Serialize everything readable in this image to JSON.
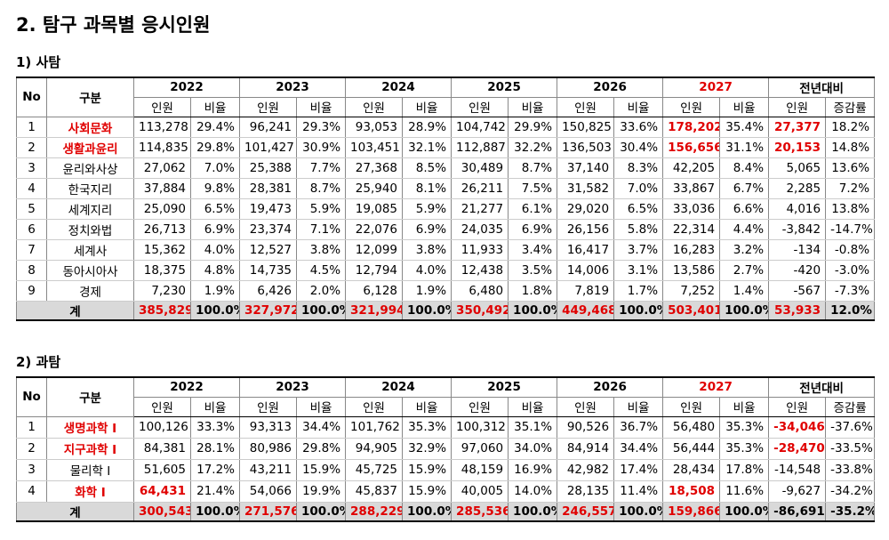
{
  "title": "2. 탐구 과목별 응시인원",
  "sections": [
    {
      "heading": "1) 사탐",
      "header": {
        "no": "No",
        "subject": "구분",
        "years": [
          "2022",
          "2023",
          "2024",
          "2025",
          "2026",
          "2027"
        ],
        "year_red": [
          5
        ],
        "change": "전년대비",
        "sub": [
          "인원",
          "비율",
          "인원",
          "비율",
          "인원",
          "비율",
          "인원",
          "비율",
          "인원",
          "비율",
          "인원",
          "비율",
          "인원",
          "증감률"
        ]
      },
      "rows": [
        {
          "cells": [
            "1",
            "사회문화",
            "113,278",
            "29.4%",
            "96,241",
            "29.3%",
            "93,053",
            "28.9%",
            "104,742",
            "29.9%",
            "150,825",
            "33.6%",
            "178,202",
            "35.4%",
            "27,377",
            "18.2%"
          ],
          "red": [
            1,
            12,
            14
          ]
        },
        {
          "cells": [
            "2",
            "생활과윤리",
            "114,835",
            "29.8%",
            "101,427",
            "30.9%",
            "103,451",
            "32.1%",
            "112,887",
            "32.2%",
            "136,503",
            "30.4%",
            "156,656",
            "31.1%",
            "20,153",
            "14.8%"
          ],
          "red": [
            1,
            12,
            14
          ]
        },
        {
          "cells": [
            "3",
            "윤리와사상",
            "27,062",
            "7.0%",
            "25,388",
            "7.7%",
            "27,368",
            "8.5%",
            "30,489",
            "8.7%",
            "37,140",
            "8.3%",
            "42,205",
            "8.4%",
            "5,065",
            "13.6%"
          ],
          "red": []
        },
        {
          "cells": [
            "4",
            "한국지리",
            "37,884",
            "9.8%",
            "28,381",
            "8.7%",
            "25,940",
            "8.1%",
            "26,211",
            "7.5%",
            "31,582",
            "7.0%",
            "33,867",
            "6.7%",
            "2,285",
            "7.2%"
          ],
          "red": []
        },
        {
          "cells": [
            "5",
            "세계지리",
            "25,090",
            "6.5%",
            "19,473",
            "5.9%",
            "19,085",
            "5.9%",
            "21,277",
            "6.1%",
            "29,020",
            "6.5%",
            "33,036",
            "6.6%",
            "4,016",
            "13.8%"
          ],
          "red": []
        },
        {
          "cells": [
            "6",
            "정치와법",
            "26,713",
            "6.9%",
            "23,374",
            "7.1%",
            "22,076",
            "6.9%",
            "24,035",
            "6.9%",
            "26,156",
            "5.8%",
            "22,314",
            "4.4%",
            "-3,842",
            "-14.7%"
          ],
          "red": []
        },
        {
          "cells": [
            "7",
            "세계사",
            "15,362",
            "4.0%",
            "12,527",
            "3.8%",
            "12,099",
            "3.8%",
            "11,933",
            "3.4%",
            "16,417",
            "3.7%",
            "16,283",
            "3.2%",
            "-134",
            "-0.8%"
          ],
          "red": []
        },
        {
          "cells": [
            "8",
            "동아시아사",
            "18,375",
            "4.8%",
            "14,735",
            "4.5%",
            "12,794",
            "4.0%",
            "12,438",
            "3.5%",
            "14,006",
            "3.1%",
            "13,586",
            "2.7%",
            "-420",
            "-3.0%"
          ],
          "red": []
        },
        {
          "cells": [
            "9",
            "경제",
            "7,230",
            "1.9%",
            "6,426",
            "2.0%",
            "6,128",
            "1.9%",
            "6,480",
            "1.8%",
            "7,819",
            "1.7%",
            "7,252",
            "1.4%",
            "-567",
            "-7.3%"
          ],
          "red": []
        }
      ],
      "total": {
        "cells": [
          "계",
          "385,829",
          "100.0%",
          "327,972",
          "100.0%",
          "321,994",
          "100.0%",
          "350,492",
          "100.0%",
          "449,468",
          "100.0%",
          "503,401",
          "100.0%",
          "53,933",
          "12.0%"
        ],
        "red": [
          1,
          3,
          5,
          7,
          9,
          11,
          13
        ]
      }
    },
    {
      "heading": "2) 과탐",
      "header": {
        "no": "No",
        "subject": "구분",
        "years": [
          "2022",
          "2023",
          "2024",
          "2025",
          "2026",
          "2027"
        ],
        "year_red": [
          5
        ],
        "change": "전년대비",
        "sub": [
          "인원",
          "비율",
          "인원",
          "비율",
          "인원",
          "비율",
          "인원",
          "비율",
          "인원",
          "비율",
          "인원",
          "비율",
          "인원",
          "증감률"
        ]
      },
      "rows": [
        {
          "cells": [
            "1",
            "생명과학 I",
            "100,126",
            "33.3%",
            "93,313",
            "34.4%",
            "101,762",
            "35.3%",
            "100,312",
            "35.1%",
            "90,526",
            "36.7%",
            "56,480",
            "35.3%",
            "-34,046",
            "-37.6%"
          ],
          "red": [
            1,
            14
          ]
        },
        {
          "cells": [
            "2",
            "지구과학 I",
            "84,381",
            "28.1%",
            "80,986",
            "29.8%",
            "94,905",
            "32.9%",
            "97,060",
            "34.0%",
            "84,914",
            "34.4%",
            "56,444",
            "35.3%",
            "-28,470",
            "-33.5%"
          ],
          "red": [
            1,
            14
          ]
        },
        {
          "cells": [
            "3",
            "물리학 I",
            "51,605",
            "17.2%",
            "43,211",
            "15.9%",
            "45,725",
            "15.9%",
            "48,159",
            "16.9%",
            "42,982",
            "17.4%",
            "28,434",
            "17.8%",
            "-14,548",
            "-33.8%"
          ],
          "red": []
        },
        {
          "cells": [
            "4",
            "화학 I",
            "64,431",
            "21.4%",
            "54,066",
            "19.9%",
            "45,837",
            "15.9%",
            "40,005",
            "14.0%",
            "28,135",
            "11.4%",
            "18,508",
            "11.6%",
            "-9,627",
            "-34.2%"
          ],
          "red": [
            1,
            2,
            12
          ]
        }
      ],
      "total": {
        "cells": [
          "계",
          "300,543",
          "100.0%",
          "271,576",
          "100.0%",
          "288,229",
          "100.0%",
          "285,536",
          "100.0%",
          "246,557",
          "100.0%",
          "159,866",
          "100.0%",
          "-86,691",
          "-35.2%"
        ],
        "red": [
          1,
          3,
          5,
          7,
          9,
          11
        ]
      }
    }
  ]
}
